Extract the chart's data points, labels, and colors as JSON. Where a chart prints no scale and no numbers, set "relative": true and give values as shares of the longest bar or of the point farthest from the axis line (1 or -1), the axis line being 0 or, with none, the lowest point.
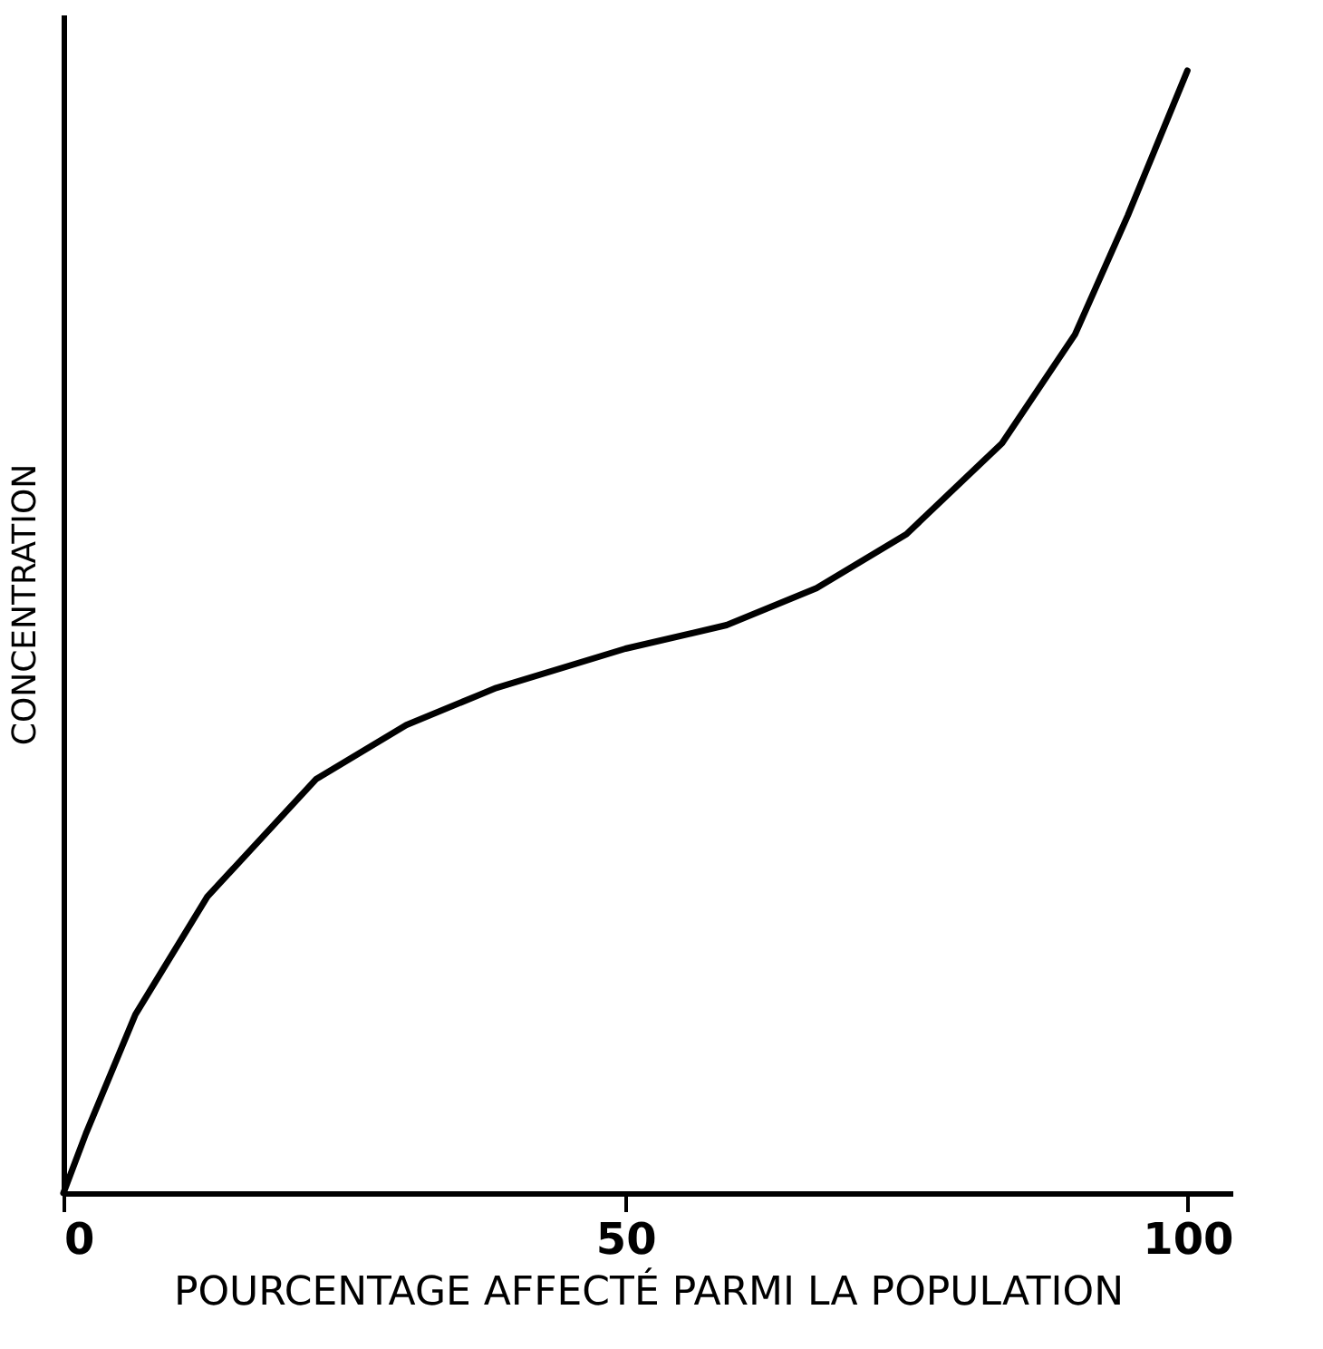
{
  "chart_data": {
    "type": "line",
    "relative": true,
    "xlabel": "POURCENTAGE AFFECTÉ PARMI LA POPULATION",
    "ylabel": "CONCENTRATION",
    "xlim": [
      0,
      104
    ],
    "xticks": [
      0,
      50,
      100
    ],
    "grid": false,
    "legend": false,
    "marker": "none",
    "line_style": "solid",
    "series": [
      {
        "color": "#000000",
        "x": [
          0,
          2,
          6.4,
          12.8,
          22.5,
          30.5,
          38.5,
          50,
          59,
          67,
          75,
          83.5,
          90,
          94.7,
          100
        ],
        "values": [
          0,
          0.053,
          0.159,
          0.264,
          0.369,
          0.417,
          0.45,
          0.485,
          0.506,
          0.539,
          0.587,
          0.668,
          0.765,
          0.871,
          1
        ]
      }
    ]
  }
}
